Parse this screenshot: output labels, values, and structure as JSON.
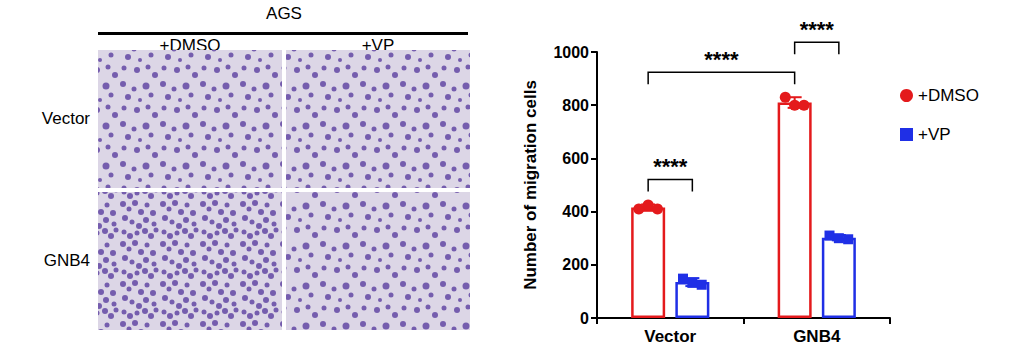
{
  "panel": {
    "title": "AGS",
    "columns": [
      "+DMSO",
      "+VP"
    ],
    "rows": [
      "Vector",
      "GNB4"
    ]
  },
  "chart_data": {
    "type": "bar",
    "y_label": "Number of migration cells",
    "categories": [
      "Vector",
      "GNB4"
    ],
    "series": [
      {
        "name": "+DMSO",
        "color": "#e41a1c",
        "marker": "circle",
        "values": [
          415,
          810
        ],
        "errors": [
          12,
          20
        ],
        "points": [
          [
            410,
            425,
            410
          ],
          [
            830,
            800,
            800
          ]
        ]
      },
      {
        "name": "+VP",
        "color": "#1f2fe6",
        "marker": "square",
        "values": [
          135,
          302
        ],
        "errors": [
          15,
          10
        ],
        "points": [
          [
            148,
            132,
            125
          ],
          [
            310,
            300,
            296
          ]
        ]
      }
    ],
    "ylim": [
      0,
      1000
    ],
    "yticks": [
      0,
      200,
      400,
      600,
      800,
      1000
    ],
    "grid": false,
    "legend": "right",
    "annotations": [
      {
        "text": "****",
        "from": {
          "category": "Vector",
          "series": "+DMSO"
        },
        "to": {
          "category": "Vector",
          "series": "+VP"
        }
      },
      {
        "text": "****",
        "from": {
          "category": "Vector",
          "series": "+DMSO"
        },
        "to": {
          "category": "GNB4",
          "series": "+DMSO"
        }
      },
      {
        "text": "****",
        "from": {
          "category": "GNB4",
          "series": "+DMSO"
        },
        "to": {
          "category": "GNB4",
          "series": "+VP"
        }
      }
    ]
  }
}
